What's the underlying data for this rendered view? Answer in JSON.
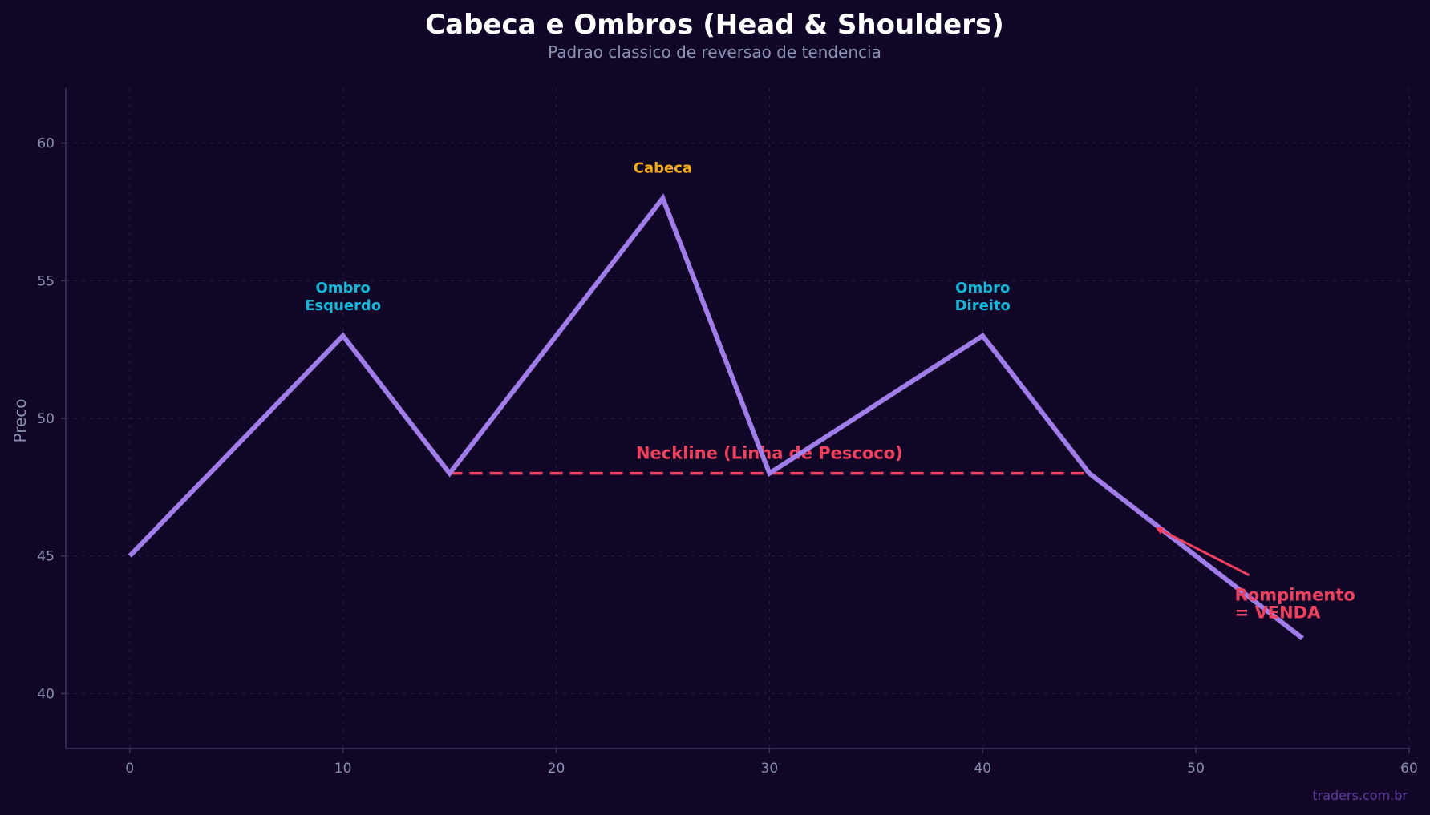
{
  "chart_data": {
    "type": "line",
    "title": "Cabeca e Ombros (Head & Shoulders)",
    "subtitle": "Padrao classico de reversao de tendencia",
    "xlabel": "",
    "ylabel": "Preco",
    "xlim": [
      -3,
      60
    ],
    "ylim": [
      38,
      62
    ],
    "x_ticks": [
      0,
      10,
      20,
      30,
      40,
      50,
      60
    ],
    "y_ticks": [
      40,
      45,
      50,
      55,
      60
    ],
    "grid": true,
    "legend": "none",
    "colors": {
      "background": "#110628",
      "price_line": "#a07de8",
      "neckline": "#f0415e",
      "shoulder_text": "#16b8d8",
      "head_text": "#f4ad16",
      "axis": "#3a355a",
      "grid": "#2a1f45"
    },
    "series": [
      {
        "x": [
          0,
          10,
          15,
          25,
          30,
          40,
          45,
          55
        ],
        "y": [
          45,
          53,
          48,
          58,
          48,
          53,
          48,
          42
        ],
        "color": "#a07de8"
      }
    ],
    "neckline": {
      "x": [
        15,
        45
      ],
      "y": 48,
      "label": "Neckline (Linha de Pescoco)",
      "color": "#f0415e"
    },
    "annotations": [
      {
        "lines": [
          "Ombro",
          "Esquerdo"
        ],
        "x": 10,
        "y": 53,
        "kind": "shoulder"
      },
      {
        "lines": [
          "Cabeca"
        ],
        "x": 25,
        "y": 58,
        "kind": "head"
      },
      {
        "lines": [
          "Ombro",
          "Direito"
        ],
        "x": 40,
        "y": 53,
        "kind": "shoulder"
      }
    ],
    "breakout": {
      "lines": [
        "Rompimento",
        "= VENDA"
      ],
      "arrow_from": {
        "x": 52.5,
        "y": 44.3
      },
      "arrow_to": {
        "x": 48.2,
        "y": 46
      }
    }
  },
  "footer": "traders.com.br"
}
